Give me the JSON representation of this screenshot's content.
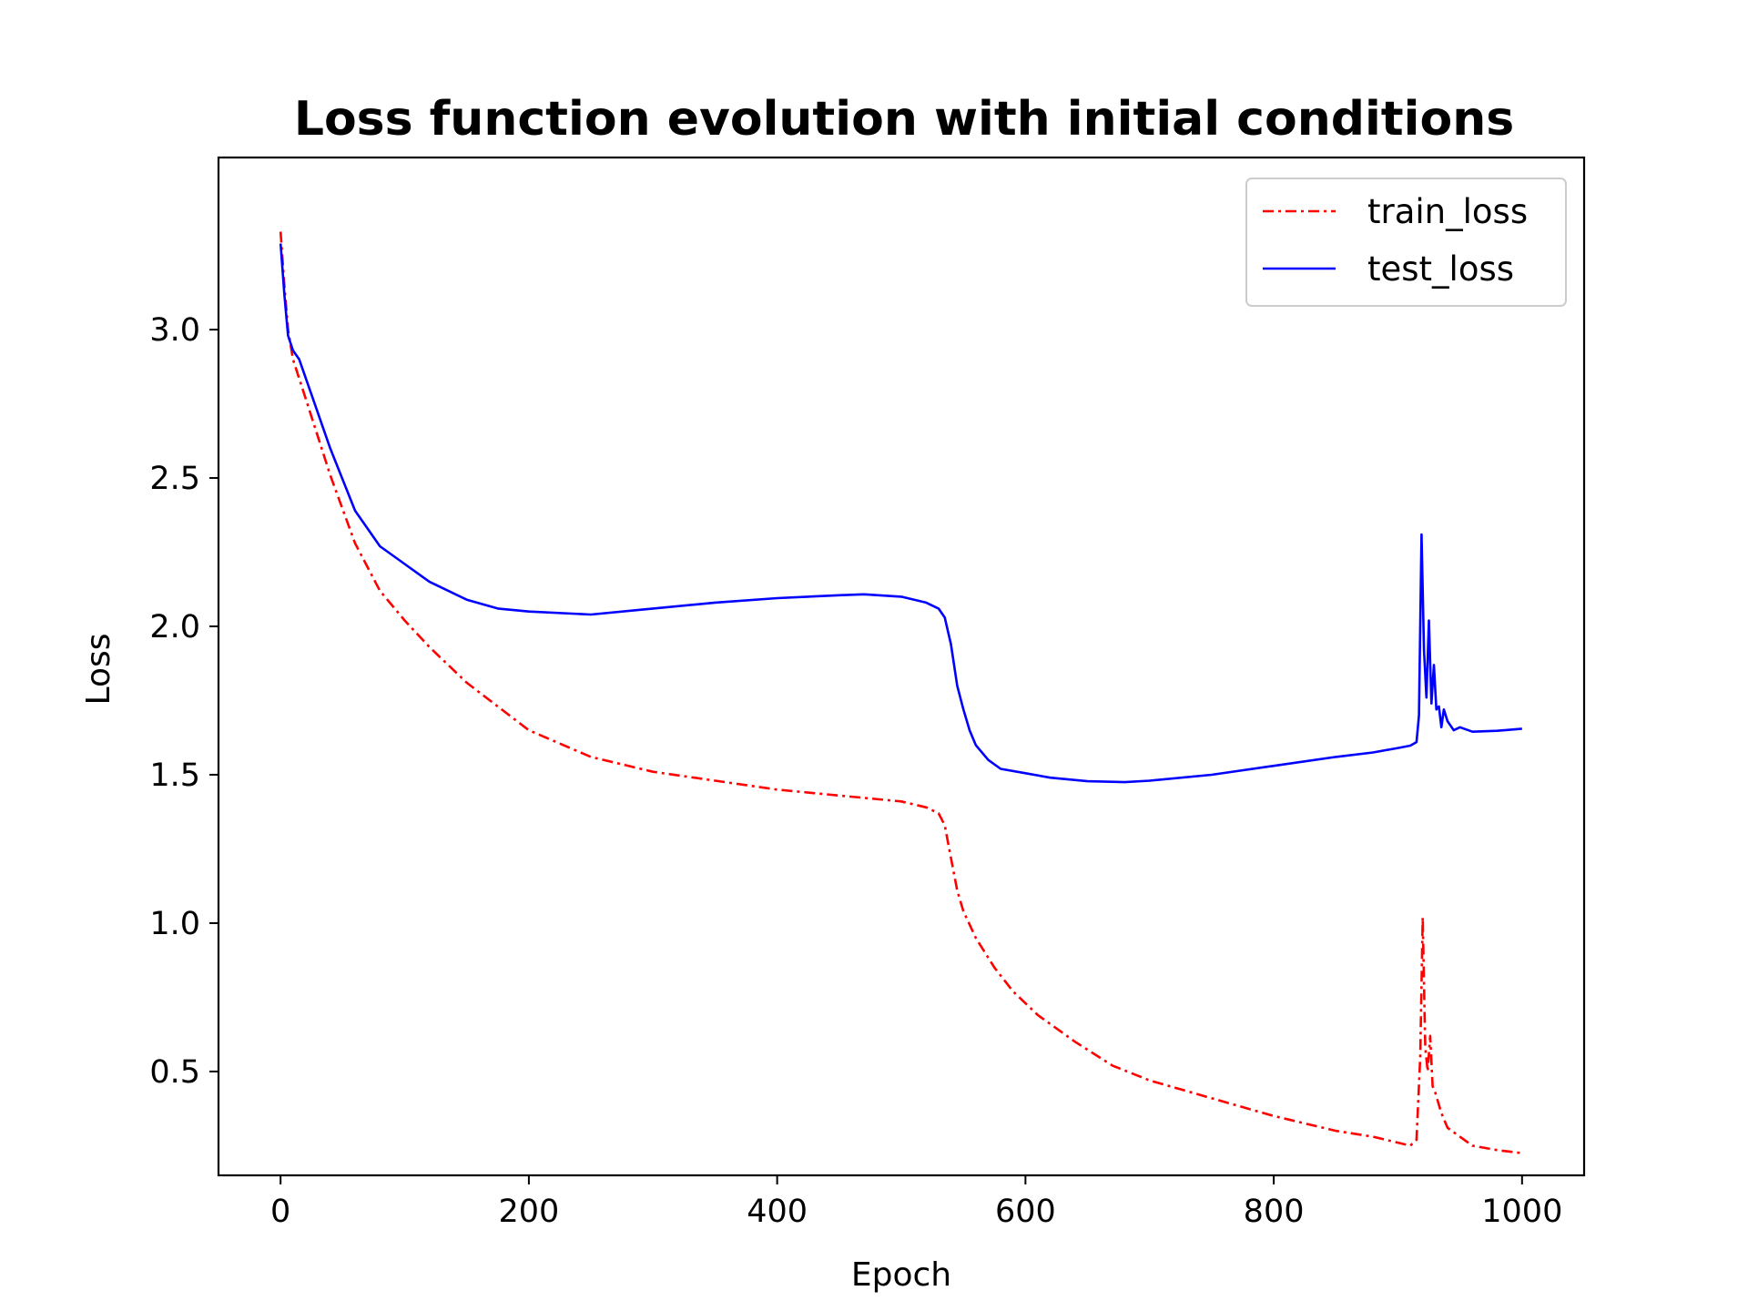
{
  "chart_data": {
    "type": "line",
    "title": "Loss function evolution with initial conditions",
    "xlabel": "Epoch",
    "ylabel": "Loss",
    "xlim": [
      -50,
      1050
    ],
    "ylim": [
      0.15,
      3.58
    ],
    "xticks": [
      0,
      200,
      400,
      600,
      800,
      1000
    ],
    "xtick_labels": [
      "0",
      "200",
      "400",
      "600",
      "800",
      "1000"
    ],
    "yticks": [
      0.5,
      1.0,
      1.5,
      2.0,
      2.5,
      3.0
    ],
    "ytick_labels": [
      "0.5",
      "1.0",
      "1.5",
      "2.0",
      "2.5",
      "3.0"
    ],
    "grid": false,
    "legend_position": "top-right",
    "series": [
      {
        "name": "train_loss",
        "color": "#ff0000",
        "style": "dash-dot",
        "x": [
          0,
          3,
          6,
          10,
          20,
          40,
          60,
          80,
          100,
          120,
          150,
          200,
          250,
          300,
          350,
          400,
          450,
          500,
          520,
          530,
          535,
          540,
          545,
          550,
          560,
          575,
          590,
          610,
          640,
          670,
          700,
          750,
          800,
          850,
          880,
          900,
          910,
          915,
          918,
          920,
          922,
          924,
          926,
          928,
          930,
          935,
          940,
          950,
          960,
          980,
          1000
        ],
        "y": [
          3.33,
          3.15,
          3.0,
          2.9,
          2.77,
          2.51,
          2.28,
          2.12,
          2.02,
          1.93,
          1.81,
          1.65,
          1.56,
          1.51,
          1.48,
          1.45,
          1.43,
          1.41,
          1.39,
          1.37,
          1.33,
          1.22,
          1.11,
          1.04,
          0.95,
          0.85,
          0.77,
          0.69,
          0.6,
          0.52,
          0.47,
          0.41,
          0.35,
          0.3,
          0.28,
          0.26,
          0.25,
          0.27,
          0.55,
          1.02,
          0.58,
          0.5,
          0.62,
          0.45,
          0.43,
          0.36,
          0.31,
          0.28,
          0.25,
          0.235,
          0.225
        ]
      },
      {
        "name": "test_loss",
        "color": "#0000ff",
        "style": "solid",
        "x": [
          0,
          3,
          6,
          10,
          15,
          25,
          40,
          60,
          80,
          100,
          120,
          150,
          175,
          200,
          250,
          300,
          350,
          400,
          450,
          470,
          500,
          520,
          530,
          535,
          540,
          545,
          550,
          555,
          560,
          570,
          580,
          600,
          620,
          650,
          680,
          700,
          750,
          800,
          850,
          880,
          900,
          910,
          915,
          917,
          919,
          921,
          923,
          925,
          927,
          929,
          931,
          933,
          935,
          937,
          940,
          945,
          950,
          960,
          980,
          1000
        ],
        "y": [
          3.29,
          3.12,
          2.98,
          2.93,
          2.9,
          2.78,
          2.6,
          2.39,
          2.27,
          2.21,
          2.15,
          2.09,
          2.06,
          2.05,
          2.04,
          2.06,
          2.08,
          2.095,
          2.105,
          2.108,
          2.1,
          2.08,
          2.06,
          2.03,
          1.94,
          1.8,
          1.72,
          1.65,
          1.6,
          1.55,
          1.52,
          1.505,
          1.49,
          1.478,
          1.475,
          1.48,
          1.5,
          1.53,
          1.56,
          1.575,
          1.59,
          1.598,
          1.61,
          1.7,
          2.31,
          1.92,
          1.76,
          2.02,
          1.74,
          1.87,
          1.72,
          1.73,
          1.66,
          1.72,
          1.68,
          1.65,
          1.66,
          1.645,
          1.648,
          1.655
        ]
      }
    ]
  }
}
